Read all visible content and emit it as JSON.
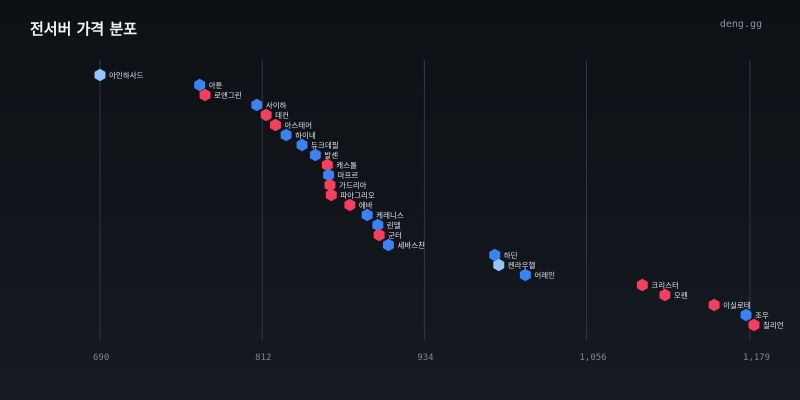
{
  "header": {
    "title": "전서버 가격 분포",
    "brand": "deng.gg"
  },
  "colors": {
    "blue": "#3b82f6",
    "red": "#f43f5e",
    "light": "#93c5fd",
    "grid": "#3a4049"
  },
  "chart_data": {
    "type": "scatter",
    "title": "전서버 가격 분포",
    "xlabel": "",
    "ylabel": "",
    "xlim": [
      690,
      1179
    ],
    "x_ticks": [
      690,
      812,
      934,
      1056,
      1179
    ],
    "x_tick_labels": [
      "690",
      "812",
      "934",
      "1,056",
      "1,179"
    ],
    "grid": true,
    "points": [
      {
        "label": "아인하사드",
        "value": 690,
        "color": "light"
      },
      {
        "label": "아툰",
        "value": 765,
        "color": "blue"
      },
      {
        "label": "로엔그린",
        "value": 769,
        "color": "red"
      },
      {
        "label": "사이하",
        "value": 808,
        "color": "blue"
      },
      {
        "label": "데컨",
        "value": 815,
        "color": "red"
      },
      {
        "label": "아스테어",
        "value": 822,
        "color": "red"
      },
      {
        "label": "하이네",
        "value": 830,
        "color": "blue"
      },
      {
        "label": "듀크데필",
        "value": 842,
        "color": "blue"
      },
      {
        "label": "발센",
        "value": 852,
        "color": "blue"
      },
      {
        "label": "캐스톨",
        "value": 861,
        "color": "red"
      },
      {
        "label": "마프르",
        "value": 862,
        "color": "blue"
      },
      {
        "label": "가드리아",
        "value": 863,
        "color": "red"
      },
      {
        "label": "파아그리오",
        "value": 864,
        "color": "red"
      },
      {
        "label": "에바",
        "value": 878,
        "color": "red"
      },
      {
        "label": "케레니스",
        "value": 891,
        "color": "blue"
      },
      {
        "label": "린델",
        "value": 899,
        "color": "blue"
      },
      {
        "label": "군터",
        "value": 900,
        "color": "red"
      },
      {
        "label": "세바스찬",
        "value": 907,
        "color": "blue"
      },
      {
        "label": "하딘",
        "value": 987,
        "color": "blue"
      },
      {
        "label": "켄라우헬",
        "value": 990,
        "color": "light"
      },
      {
        "label": "어레인",
        "value": 1010,
        "color": "blue"
      },
      {
        "label": "크리스터",
        "value": 1098,
        "color": "red"
      },
      {
        "label": "오렌",
        "value": 1115,
        "color": "red"
      },
      {
        "label": "이실로테",
        "value": 1152,
        "color": "red"
      },
      {
        "label": "조우",
        "value": 1176,
        "color": "blue"
      },
      {
        "label": "칠리언",
        "value": 1182,
        "color": "red"
      }
    ]
  }
}
